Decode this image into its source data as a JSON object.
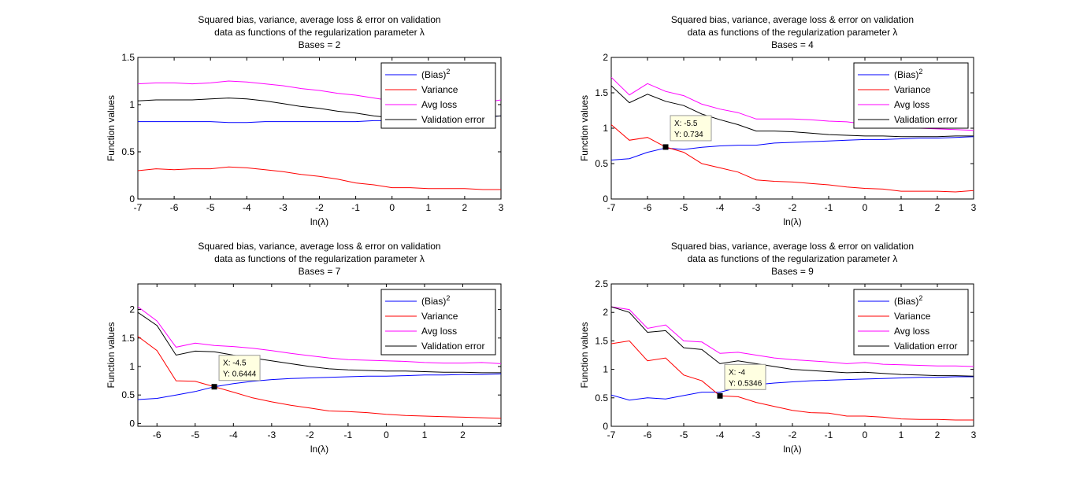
{
  "colors": {
    "bias": "#0000ff",
    "variance": "#ff0000",
    "avg_loss": "#ff00ff",
    "validation_error": "#000000",
    "datatip_bg": "#ffffe1"
  },
  "chart_data": [
    {
      "type": "line",
      "title": [
        "Squared bias, variance, average loss & error on validation",
        "data as functions of the regularization parameter λ",
        "Bases = 2"
      ],
      "xlabel": "ln(λ)",
      "ylabel": "Function values",
      "xlim": [
        -7,
        3
      ],
      "ylim": [
        0,
        1.5
      ],
      "xticks": [
        -7,
        -6,
        -5,
        -4,
        -3,
        -2,
        -1,
        0,
        1,
        2,
        3
      ],
      "xtick_labels": [
        "-7",
        "-6",
        "-5",
        "-4",
        "-3",
        "-2",
        "-1",
        "0",
        "1",
        "2",
        "3"
      ],
      "yticks": [
        0,
        0.5,
        1,
        1.5
      ],
      "ytick_labels": [
        "0",
        "0.5",
        "1",
        "1.5"
      ],
      "x": [
        -7,
        -6.5,
        -6,
        -5.5,
        -5,
        -4.5,
        -4,
        -3.5,
        -3,
        -2.5,
        -2,
        -1.5,
        -1,
        -0.5,
        0,
        0.5,
        1,
        1.5,
        2,
        2.5,
        3
      ],
      "legend": {
        "position": "top-right",
        "entries": [
          "(Bias)",
          "Variance",
          "Avg loss",
          "Validation error"
        ],
        "superscript": "2"
      },
      "series": [
        {
          "name": "(Bias)^2",
          "color_key": "bias",
          "values": [
            0.82,
            0.82,
            0.82,
            0.82,
            0.82,
            0.81,
            0.81,
            0.82,
            0.82,
            0.82,
            0.82,
            0.82,
            0.82,
            0.83,
            0.83,
            0.84,
            0.84,
            0.85,
            0.86,
            0.87,
            0.88
          ]
        },
        {
          "name": "Variance",
          "color_key": "variance",
          "values": [
            0.3,
            0.32,
            0.31,
            0.32,
            0.32,
            0.34,
            0.33,
            0.31,
            0.29,
            0.26,
            0.24,
            0.21,
            0.17,
            0.15,
            0.12,
            0.12,
            0.11,
            0.11,
            0.11,
            0.1,
            0.1
          ]
        },
        {
          "name": "Avg loss",
          "color_key": "avg_loss",
          "values": [
            1.22,
            1.23,
            1.23,
            1.22,
            1.23,
            1.25,
            1.24,
            1.22,
            1.2,
            1.17,
            1.15,
            1.12,
            1.1,
            1.07,
            1.04,
            1.02,
            1.0,
            0.99,
            1.0,
            1.02,
            1.05
          ]
        },
        {
          "name": "Validation error",
          "color_key": "validation_error",
          "values": [
            1.04,
            1.05,
            1.05,
            1.05,
            1.06,
            1.07,
            1.06,
            1.04,
            1.01,
            0.98,
            0.96,
            0.93,
            0.91,
            0.88,
            0.86,
            0.86,
            0.86,
            0.86,
            0.87,
            0.87,
            0.88
          ]
        }
      ]
    },
    {
      "type": "line",
      "title": [
        "Squared bias, variance, average loss & error on validation",
        "data as functions of the regularization parameter λ",
        "Bases = 4"
      ],
      "xlabel": "ln(λ)",
      "ylabel": "Function values",
      "xlim": [
        -7,
        3
      ],
      "ylim": [
        0,
        2
      ],
      "xticks": [
        -7,
        -6,
        -5,
        -4,
        -3,
        -2,
        -1,
        0,
        1,
        2,
        3
      ],
      "xtick_labels": [
        "-7",
        "-6",
        "-5",
        "-4",
        "-3",
        "-2",
        "-1",
        "0",
        "1",
        "2",
        "3"
      ],
      "yticks": [
        0,
        0.5,
        1,
        1.5,
        2
      ],
      "ytick_labels": [
        "0",
        "0.5",
        "1",
        "1.5",
        "2"
      ],
      "x": [
        -7,
        -6.5,
        -6,
        -5.5,
        -5,
        -4.5,
        -4,
        -3.5,
        -3,
        -2.5,
        -2,
        -1.5,
        -1,
        -0.5,
        0,
        0.5,
        1,
        1.5,
        2,
        2.5,
        3
      ],
      "legend": {
        "position": "top-right",
        "entries": [
          "(Bias)",
          "Variance",
          "Avg loss",
          "Validation error"
        ],
        "superscript": "2"
      },
      "datatip": {
        "x": -5.5,
        "y": 0.734,
        "label_x": "X: -5.5",
        "label_y": "Y: 0.734"
      },
      "series": [
        {
          "name": "(Bias)^2",
          "color_key": "bias",
          "values": [
            0.55,
            0.57,
            0.66,
            0.72,
            0.7,
            0.73,
            0.75,
            0.76,
            0.76,
            0.79,
            0.8,
            0.81,
            0.82,
            0.83,
            0.84,
            0.84,
            0.85,
            0.86,
            0.86,
            0.87,
            0.88
          ]
        },
        {
          "name": "Variance",
          "color_key": "variance",
          "values": [
            1.05,
            0.83,
            0.87,
            0.734,
            0.66,
            0.5,
            0.44,
            0.38,
            0.27,
            0.25,
            0.24,
            0.22,
            0.2,
            0.17,
            0.15,
            0.14,
            0.11,
            0.11,
            0.11,
            0.1,
            0.12
          ]
        },
        {
          "name": "Avg loss",
          "color_key": "avg_loss",
          "values": [
            1.72,
            1.47,
            1.63,
            1.52,
            1.46,
            1.34,
            1.27,
            1.22,
            1.13,
            1.13,
            1.13,
            1.12,
            1.1,
            1.09,
            1.06,
            1.04,
            1.0,
            1.0,
            0.99,
            0.98,
            0.97
          ]
        },
        {
          "name": "Validation error",
          "color_key": "validation_error",
          "values": [
            1.6,
            1.36,
            1.48,
            1.38,
            1.32,
            1.2,
            1.12,
            1.05,
            0.96,
            0.96,
            0.95,
            0.93,
            0.91,
            0.9,
            0.89,
            0.89,
            0.88,
            0.88,
            0.88,
            0.89,
            0.89
          ]
        }
      ]
    },
    {
      "type": "line",
      "title": [
        "Squared bias, variance, average loss & error on validation",
        "data as functions of the regularization parameter λ",
        "Bases = 7"
      ],
      "xlabel": "ln(λ)",
      "ylabel": "Function values",
      "xlim": [
        -6.5,
        3
      ],
      "ylim": [
        -0.05,
        2.45
      ],
      "xticks": [
        -6,
        -5,
        -4,
        -3,
        -2,
        -1,
        0,
        1,
        2
      ],
      "xtick_labels": [
        "-6",
        "-5",
        "-4",
        "-3",
        "-2",
        "-1",
        "0",
        "1",
        "2"
      ],
      "yticks": [
        0,
        0.5,
        1,
        1.5,
        2
      ],
      "ytick_labels": [
        "0",
        "0.5",
        "1",
        "1.5",
        "2"
      ],
      "x": [
        -6.5,
        -6,
        -5.5,
        -5,
        -4.5,
        -4,
        -3.5,
        -3,
        -2.5,
        -2,
        -1.5,
        -1,
        -0.5,
        0,
        0.5,
        1,
        1.5,
        2,
        2.5,
        3
      ],
      "legend": {
        "position": "top-right",
        "entries": [
          "(Bias)",
          "Variance",
          "Avg loss",
          "Validation error"
        ],
        "superscript": "2"
      },
      "datatip": {
        "x": -4.5,
        "y": 0.6444,
        "label_x": "X: -4.5",
        "label_y": "Y: 0.6444"
      },
      "series": [
        {
          "name": "(Bias)^2",
          "color_key": "bias",
          "values": [
            0.42,
            0.44,
            0.5,
            0.56,
            0.6444,
            0.7,
            0.74,
            0.77,
            0.79,
            0.8,
            0.81,
            0.82,
            0.83,
            0.83,
            0.84,
            0.85,
            0.85,
            0.86,
            0.86,
            0.87
          ]
        },
        {
          "name": "Variance",
          "color_key": "variance",
          "values": [
            1.53,
            1.28,
            0.75,
            0.74,
            0.6444,
            0.55,
            0.45,
            0.38,
            0.32,
            0.27,
            0.22,
            0.21,
            0.19,
            0.16,
            0.14,
            0.13,
            0.12,
            0.11,
            0.1,
            0.09
          ]
        },
        {
          "name": "Avg loss",
          "color_key": "avg_loss",
          "values": [
            2.05,
            1.8,
            1.34,
            1.41,
            1.37,
            1.35,
            1.32,
            1.28,
            1.23,
            1.19,
            1.15,
            1.12,
            1.11,
            1.1,
            1.09,
            1.07,
            1.06,
            1.06,
            1.07,
            1.05
          ]
        },
        {
          "name": "Validation error",
          "color_key": "validation_error",
          "values": [
            1.95,
            1.72,
            1.2,
            1.27,
            1.26,
            1.2,
            1.15,
            1.1,
            1.05,
            1.0,
            0.96,
            0.94,
            0.93,
            0.92,
            0.92,
            0.91,
            0.9,
            0.9,
            0.89,
            0.89
          ]
        }
      ]
    },
    {
      "type": "line",
      "title": [
        "Squared bias, variance, average loss & error on validation",
        "data as functions of the regularization parameter λ",
        "Bases = 9"
      ],
      "xlabel": "ln(λ)",
      "ylabel": "Function values",
      "xlim": [
        -7,
        3
      ],
      "ylim": [
        0,
        2.5
      ],
      "xticks": [
        -7,
        -6,
        -5,
        -4,
        -3,
        -2,
        -1,
        0,
        1,
        2,
        3
      ],
      "xtick_labels": [
        "-7",
        "-6",
        "-5",
        "-4",
        "-3",
        "-2",
        "-1",
        "0",
        "1",
        "2",
        "3"
      ],
      "yticks": [
        0,
        0.5,
        1,
        1.5,
        2,
        2.5
      ],
      "ytick_labels": [
        "0",
        "0.5",
        "1",
        "1.5",
        "2",
        "2.5"
      ],
      "x": [
        -7,
        -6.5,
        -6,
        -5.5,
        -5,
        -4.5,
        -4,
        -3.5,
        -3,
        -2.5,
        -2,
        -1.5,
        -1,
        -0.5,
        0,
        0.5,
        1,
        1.5,
        2,
        2.5,
        3
      ],
      "legend": {
        "position": "top-right",
        "entries": [
          "(Bias)",
          "Variance",
          "Avg loss",
          "Validation error"
        ],
        "superscript": "2"
      },
      "datatip": {
        "x": -4,
        "y": 0.5346,
        "label_x": "X: -4",
        "label_y": "Y: 0.5346"
      },
      "series": [
        {
          "name": "(Bias)^2",
          "color_key": "bias",
          "values": [
            0.55,
            0.46,
            0.5,
            0.48,
            0.54,
            0.6,
            0.6,
            0.68,
            0.73,
            0.76,
            0.78,
            0.8,
            0.81,
            0.82,
            0.83,
            0.84,
            0.85,
            0.86,
            0.86,
            0.87,
            0.87
          ]
        },
        {
          "name": "Variance",
          "color_key": "variance",
          "values": [
            1.45,
            1.5,
            1.15,
            1.2,
            0.9,
            0.8,
            0.5346,
            0.52,
            0.42,
            0.35,
            0.28,
            0.24,
            0.23,
            0.18,
            0.18,
            0.16,
            0.13,
            0.12,
            0.12,
            0.11,
            0.11
          ]
        },
        {
          "name": "Avg loss",
          "color_key": "avg_loss",
          "values": [
            2.1,
            2.05,
            1.72,
            1.78,
            1.5,
            1.48,
            1.28,
            1.3,
            1.25,
            1.2,
            1.17,
            1.15,
            1.13,
            1.1,
            1.12,
            1.09,
            1.08,
            1.07,
            1.06,
            1.06,
            1.05
          ]
        },
        {
          "name": "Validation error",
          "color_key": "validation_error",
          "values": [
            2.1,
            2.0,
            1.65,
            1.68,
            1.38,
            1.35,
            1.1,
            1.15,
            1.1,
            1.05,
            1.0,
            0.98,
            0.96,
            0.94,
            0.95,
            0.93,
            0.91,
            0.9,
            0.89,
            0.89,
            0.88
          ]
        }
      ]
    }
  ]
}
